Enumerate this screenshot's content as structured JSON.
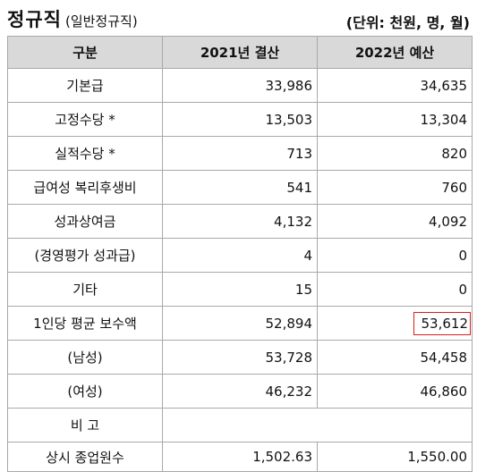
{
  "title": {
    "main": "정규직",
    "sub": "(일반정규직)",
    "unit": "(단위: 천원, 명, 월)"
  },
  "table": {
    "headers": [
      "구분",
      "2021년 결산",
      "2022년 예산"
    ],
    "rows": [
      {
        "label": "기본급",
        "y2021": "33,986",
        "y2022": "34,635"
      },
      {
        "label": "고정수당 *",
        "y2021": "13,503",
        "y2022": "13,304"
      },
      {
        "label": "실적수당 *",
        "y2021": "713",
        "y2022": "820"
      },
      {
        "label": "급여성 복리후생비",
        "y2021": "541",
        "y2022": "760"
      },
      {
        "label": "성과상여금",
        "y2021": "4,132",
        "y2022": "4,092"
      },
      {
        "label": "(경영평가 성과급)",
        "y2021": "4",
        "y2022": "0"
      },
      {
        "label": "기타",
        "y2021": "15",
        "y2022": "0"
      },
      {
        "label": "1인당 평균 보수액",
        "y2021": "52,894",
        "y2022": "53,612",
        "highlight": true
      },
      {
        "label": "(남성)",
        "y2021": "53,728",
        "y2022": "54,458"
      },
      {
        "label": "(여성)",
        "y2021": "46,232",
        "y2022": "46,860"
      },
      {
        "label": "비 고",
        "y2021": "",
        "y2022": ""
      },
      {
        "label": "상시 종업원수",
        "y2021": "1,502.63",
        "y2022": "1,550.00"
      }
    ]
  },
  "colors": {
    "header_bg": "#d9d9d9",
    "highlight_border": "#d91e1e",
    "grid": "#a9a9a9"
  }
}
